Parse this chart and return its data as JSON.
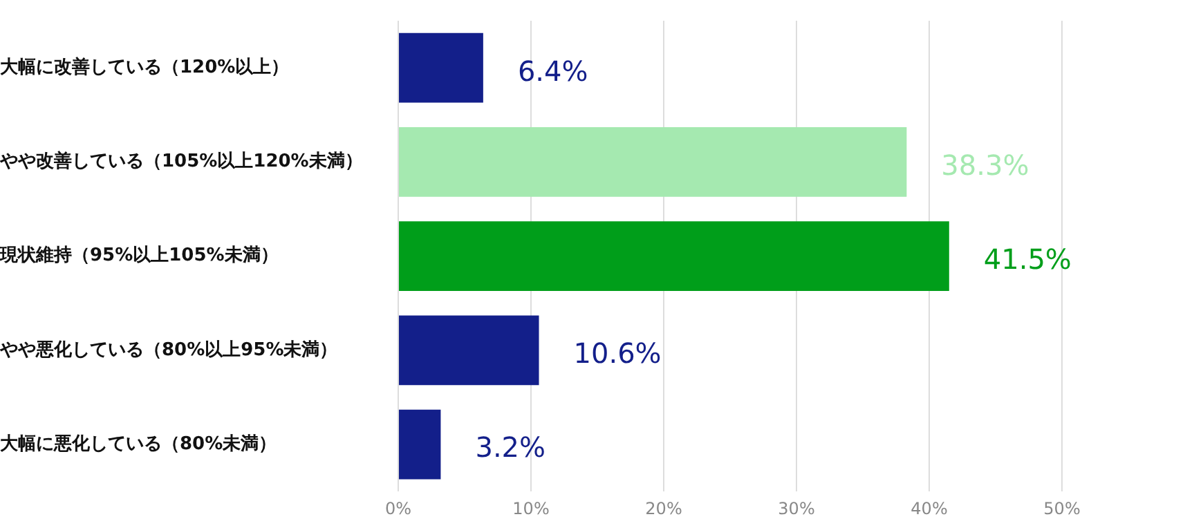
{
  "chart_data": {
    "type": "bar",
    "orientation": "horizontal",
    "categories": [
      "大幅に改善している（120%以上）",
      "やや改善している（105%以上120%未満）",
      "現状維持（95%以上105%未満）",
      "やや悪化している（80%以上95%未満）",
      "大幅に悪化している（80%未満）"
    ],
    "values": [
      6.4,
      38.3,
      41.5,
      10.6,
      3.2
    ],
    "colors": [
      "#131f8a",
      "#a5e9b0",
      "#009e1a",
      "#131f8a",
      "#131f8a"
    ],
    "value_labels": [
      "6.4%",
      "38.3%",
      "41.5%",
      "10.6%",
      "3.2%"
    ],
    "xlim": [
      0,
      50
    ],
    "xticks": [
      {
        "value": 0,
        "label": "0%"
      },
      {
        "value": 10,
        "label": "10%"
      },
      {
        "value": 20,
        "label": "20%"
      },
      {
        "value": 30,
        "label": "30%"
      },
      {
        "value": 40,
        "label": "40%"
      },
      {
        "value": 50,
        "label": "50%"
      }
    ],
    "grid": "x",
    "legend": false
  }
}
